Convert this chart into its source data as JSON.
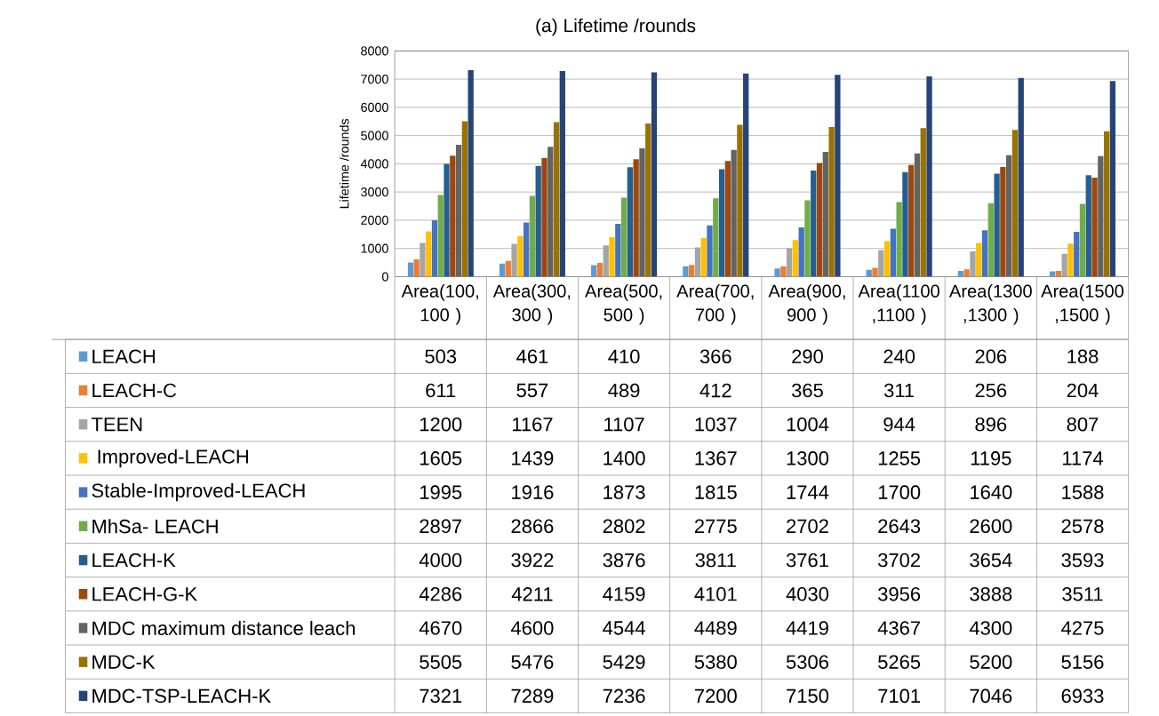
{
  "chart_data": {
    "type": "bar",
    "title": "(a) Lifetime /rounds",
    "ylabel": "Lifetime /rounds",
    "categories": [
      "Area(100, 100 )",
      "Area(300, 300 )",
      "Area(500, 500 )",
      "Area(700, 700 )",
      "Area(900, 900 )",
      "Area(1100 ,1100 )",
      "Area(1300 ,1300 )",
      "Area(1500 ,1500 )"
    ],
    "series": [
      {
        "name": "LEACH",
        "color": "#5b9bd5",
        "values": [
          503,
          461,
          410,
          366,
          290,
          240,
          206,
          188
        ]
      },
      {
        "name": "LEACH-C",
        "color": "#ed7d31",
        "values": [
          611,
          557,
          489,
          412,
          365,
          311,
          256,
          204
        ]
      },
      {
        "name": "TEEN",
        "color": "#a5a5a5",
        "values": [
          1200,
          1167,
          1107,
          1037,
          1004,
          944,
          896,
          807
        ]
      },
      {
        "name": " Improved-LEACH",
        "color": "#ffc000",
        "values": [
          1605,
          1439,
          1400,
          1367,
          1300,
          1255,
          1195,
          1174
        ]
      },
      {
        "name": "Stable-Improved-LEACH",
        "color": "#4472c4",
        "values": [
          1995,
          1916,
          1873,
          1815,
          1744,
          1700,
          1640,
          1588
        ]
      },
      {
        "name": "MhSa- LEACH",
        "color": "#70ad47",
        "values": [
          2897,
          2866,
          2802,
          2775,
          2702,
          2643,
          2600,
          2578
        ]
      },
      {
        "name": "LEACH-K",
        "color": "#255e91",
        "values": [
          4000,
          3922,
          3876,
          3811,
          3761,
          3702,
          3654,
          3593
        ]
      },
      {
        "name": "LEACH-G-K",
        "color": "#9e480e",
        "values": [
          4286,
          4211,
          4159,
          4101,
          4030,
          3956,
          3888,
          3511
        ]
      },
      {
        "name": "MDC maximum distance leach",
        "color": "#636363",
        "values": [
          4670,
          4600,
          4544,
          4489,
          4419,
          4367,
          4300,
          4275
        ]
      },
      {
        "name": "MDC-K",
        "color": "#997300",
        "values": [
          5505,
          5476,
          5429,
          5380,
          5306,
          5265,
          5200,
          5156
        ]
      },
      {
        "name": "MDC-TSP-LEACH-K",
        "color": "#264478",
        "values": [
          7321,
          7289,
          7236,
          7200,
          7150,
          7101,
          7046,
          6933
        ]
      }
    ],
    "ylim": [
      0,
      8000
    ],
    "yticks": [
      0,
      1000,
      2000,
      3000,
      4000,
      5000,
      6000,
      7000,
      8000
    ],
    "grid": "y",
    "data_labels": true,
    "legend": "bottom left"
  }
}
